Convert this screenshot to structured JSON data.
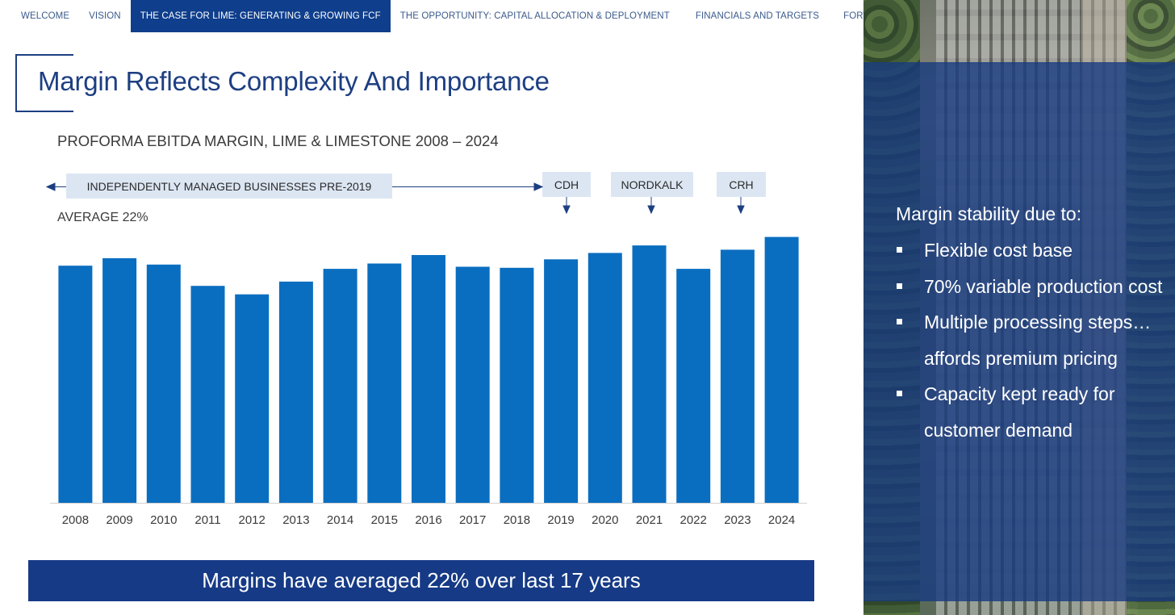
{
  "nav": {
    "items": [
      {
        "label": "WELCOME",
        "active": false
      },
      {
        "label": "VISION",
        "active": false
      },
      {
        "label": "THE CASE FOR LIME: GENERATING & GROWING FCF",
        "active": true
      },
      {
        "label": "THE OPPORTUNITY: CAPITAL ALLOCATION & DEPLOYMENT",
        "active": false
      },
      {
        "label": "FINANCIALS AND TARGETS",
        "active": false
      },
      {
        "label": "FORWARD LOOK",
        "active": false
      }
    ]
  },
  "page_title": "Margin Reflects Complexity And Importance",
  "chart_subtitle": "PROFORMA EBITDA MARGIN, LIME & LIMESTONE 2008 – 2024",
  "annotations": {
    "pre2019": "INDEPENDENTLY MANAGED BUSINESSES PRE-2019",
    "cdh": "CDH",
    "nordkalk": "NORDKALK",
    "crh": "CRH",
    "average": "AVERAGE 22%"
  },
  "chart_data": {
    "type": "bar",
    "title": "PROFORMA EBITDA MARGIN, LIME & LIMESTONE 2008 – 2024",
    "xlabel": "",
    "ylabel": "",
    "categories": [
      "2008",
      "2009",
      "2010",
      "2011",
      "2012",
      "2013",
      "2014",
      "2015",
      "2016",
      "2017",
      "2018",
      "2019",
      "2020",
      "2021",
      "2022",
      "2023",
      "2024"
    ],
    "values": [
      22.3,
      23.0,
      22.4,
      20.4,
      19.6,
      20.8,
      22.0,
      22.5,
      23.3,
      22.2,
      22.1,
      22.9,
      23.5,
      24.2,
      22.0,
      23.8,
      25.0
    ],
    "ylim": [
      0,
      25.5
    ],
    "bar_color": "#0a6ec0",
    "axis_color": "#d0d0d0",
    "grid": false,
    "legend": "none"
  },
  "banner": "Margins have averaged 22% over last 17 years",
  "sidebar": {
    "heading": "Margin stability due to:",
    "bullets": [
      "Flexible cost base",
      "70% variable production cost",
      "Multiple processing steps… affords premium pricing",
      "Capacity kept ready for customer demand"
    ]
  },
  "colors": {
    "accent_navy": "#163a86",
    "nav_active": "#0f3e8c",
    "title_blue": "#1d3f82",
    "annotation_fill": "#dce6f3"
  }
}
